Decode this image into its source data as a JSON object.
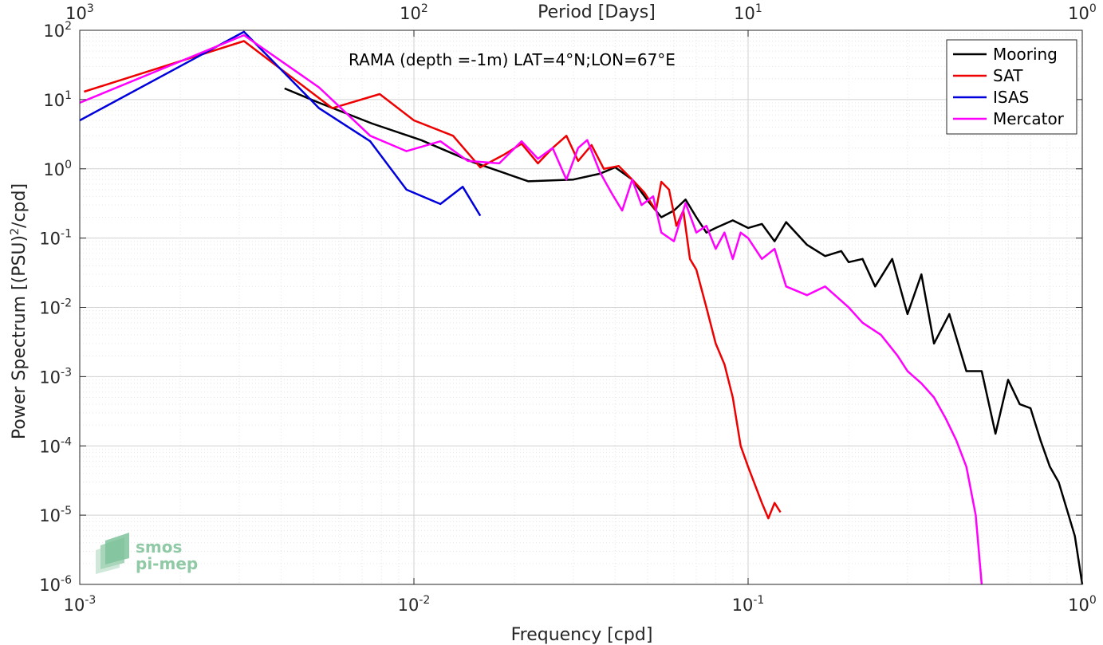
{
  "chart_data": {
    "type": "line",
    "title": "RAMA (depth =-1m) LAT=4°N;LON=67°E",
    "xlabel": "Frequency [cpd]",
    "top_xlabel": "Period [Days]",
    "ylabel_main": "Power Spectrum [(PSU)",
    "ylabel_sup": "2",
    "ylabel_tail": "/cpd]",
    "x_scale": "log",
    "y_scale": "log",
    "xlim": [
      0.001,
      1
    ],
    "ylim": [
      1e-06,
      100
    ],
    "grid": true,
    "legend_position": "top-right",
    "x_ticks": [
      {
        "value": 0.001,
        "base": "10",
        "exp": "-3"
      },
      {
        "value": 0.01,
        "base": "10",
        "exp": "-2"
      },
      {
        "value": 0.1,
        "base": "10",
        "exp": "-1"
      },
      {
        "value": 1,
        "base": "10",
        "exp": "0"
      }
    ],
    "top_ticks": [
      {
        "value": 0.001,
        "base": "10",
        "exp": "3"
      },
      {
        "value": 0.01,
        "base": "10",
        "exp": "2"
      },
      {
        "value": 0.1,
        "base": "10",
        "exp": "1"
      },
      {
        "value": 1,
        "base": "10",
        "exp": "0"
      }
    ],
    "y_ticks": [
      {
        "value": 100,
        "base": "10",
        "exp": "2"
      },
      {
        "value": 10,
        "base": "10",
        "exp": "1"
      },
      {
        "value": 1,
        "base": "10",
        "exp": "0"
      },
      {
        "value": 0.1,
        "base": "10",
        "exp": "-1"
      },
      {
        "value": 0.01,
        "base": "10",
        "exp": "-2"
      },
      {
        "value": 0.001,
        "base": "10",
        "exp": "-3"
      },
      {
        "value": 0.0001,
        "base": "10",
        "exp": "-4"
      },
      {
        "value": 1e-05,
        "base": "10",
        "exp": "-5"
      },
      {
        "value": 1e-06,
        "base": "10",
        "exp": "-6"
      }
    ],
    "series": [
      {
        "name": "Mooring",
        "color": "#000000",
        "points": [
          [
            0.0041,
            14.5
          ],
          [
            0.0052,
            9.0
          ],
          [
            0.0075,
            4.5
          ],
          [
            0.0105,
            2.6
          ],
          [
            0.015,
            1.25
          ],
          [
            0.022,
            0.66
          ],
          [
            0.03,
            0.7
          ],
          [
            0.036,
            0.85
          ],
          [
            0.04,
            1.05
          ],
          [
            0.045,
            0.7
          ],
          [
            0.05,
            0.35
          ],
          [
            0.055,
            0.2
          ],
          [
            0.06,
            0.25
          ],
          [
            0.065,
            0.36
          ],
          [
            0.07,
            0.2
          ],
          [
            0.075,
            0.12
          ],
          [
            0.08,
            0.14
          ],
          [
            0.09,
            0.18
          ],
          [
            0.1,
            0.14
          ],
          [
            0.11,
            0.16
          ],
          [
            0.12,
            0.09
          ],
          [
            0.13,
            0.17
          ],
          [
            0.15,
            0.08
          ],
          [
            0.17,
            0.055
          ],
          [
            0.19,
            0.065
          ],
          [
            0.2,
            0.045
          ],
          [
            0.22,
            0.05
          ],
          [
            0.24,
            0.02
          ],
          [
            0.27,
            0.05
          ],
          [
            0.3,
            0.008
          ],
          [
            0.33,
            0.03
          ],
          [
            0.36,
            0.003
          ],
          [
            0.4,
            0.008
          ],
          [
            0.45,
            0.0012
          ],
          [
            0.5,
            0.0012
          ],
          [
            0.55,
            0.00015
          ],
          [
            0.6,
            0.0009
          ],
          [
            0.65,
            0.0004
          ],
          [
            0.7,
            0.00035
          ],
          [
            0.75,
            0.00012
          ],
          [
            0.8,
            5e-05
          ],
          [
            0.85,
            3e-05
          ],
          [
            0.9,
            1.2e-05
          ],
          [
            0.95,
            5e-06
          ],
          [
            1.0,
            1e-06
          ]
        ]
      },
      {
        "name": "SAT",
        "color": "#ee0000",
        "points": [
          [
            0.00103,
            13.0
          ],
          [
            0.0031,
            70.0
          ],
          [
            0.0057,
            7.5
          ],
          [
            0.0079,
            12.0
          ],
          [
            0.01,
            5.0
          ],
          [
            0.0131,
            3.0
          ],
          [
            0.0158,
            1.05
          ],
          [
            0.0186,
            1.6
          ],
          [
            0.021,
            2.3
          ],
          [
            0.0235,
            1.2
          ],
          [
            0.026,
            2.0
          ],
          [
            0.0286,
            3.0
          ],
          [
            0.031,
            1.3
          ],
          [
            0.034,
            2.2
          ],
          [
            0.037,
            1.0
          ],
          [
            0.041,
            1.1
          ],
          [
            0.045,
            0.7
          ],
          [
            0.049,
            0.45
          ],
          [
            0.053,
            0.25
          ],
          [
            0.055,
            0.65
          ],
          [
            0.058,
            0.5
          ],
          [
            0.061,
            0.15
          ],
          [
            0.064,
            0.25
          ],
          [
            0.067,
            0.05
          ],
          [
            0.07,
            0.035
          ],
          [
            0.075,
            0.01
          ],
          [
            0.08,
            0.003
          ],
          [
            0.085,
            0.0015
          ],
          [
            0.09,
            0.0005
          ],
          [
            0.095,
            0.0001
          ],
          [
            0.1,
            5e-05
          ],
          [
            0.11,
            1.5e-05
          ],
          [
            0.115,
            9e-06
          ],
          [
            0.12,
            1.5e-05
          ],
          [
            0.125,
            1.1e-05
          ]
        ]
      },
      {
        "name": "ISAS",
        "color": "#0000dd",
        "points": [
          [
            0.001,
            5.0
          ],
          [
            0.0031,
            95.0
          ],
          [
            0.0052,
            7.5
          ],
          [
            0.0074,
            2.5
          ],
          [
            0.0095,
            0.5
          ],
          [
            0.012,
            0.31
          ],
          [
            0.014,
            0.55
          ],
          [
            0.0158,
            0.21
          ]
        ]
      },
      {
        "name": "Mercator",
        "color": "#ff00ff",
        "points": [
          [
            0.001,
            9.0
          ],
          [
            0.0031,
            85.0
          ],
          [
            0.0052,
            15.0
          ],
          [
            0.0074,
            3.0
          ],
          [
            0.0095,
            1.8
          ],
          [
            0.012,
            2.5
          ],
          [
            0.0145,
            1.3
          ],
          [
            0.018,
            1.2
          ],
          [
            0.021,
            2.5
          ],
          [
            0.0235,
            1.4
          ],
          [
            0.026,
            2.0
          ],
          [
            0.0286,
            0.7
          ],
          [
            0.031,
            2.0
          ],
          [
            0.033,
            2.6
          ],
          [
            0.036,
            0.9
          ],
          [
            0.039,
            0.45
          ],
          [
            0.042,
            0.25
          ],
          [
            0.045,
            0.7
          ],
          [
            0.048,
            0.3
          ],
          [
            0.052,
            0.4
          ],
          [
            0.055,
            0.12
          ],
          [
            0.06,
            0.09
          ],
          [
            0.065,
            0.32
          ],
          [
            0.07,
            0.12
          ],
          [
            0.075,
            0.15
          ],
          [
            0.08,
            0.07
          ],
          [
            0.085,
            0.12
          ],
          [
            0.09,
            0.05
          ],
          [
            0.095,
            0.12
          ],
          [
            0.1,
            0.1
          ],
          [
            0.11,
            0.05
          ],
          [
            0.12,
            0.07
          ],
          [
            0.13,
            0.02
          ],
          [
            0.15,
            0.015
          ],
          [
            0.17,
            0.02
          ],
          [
            0.2,
            0.01
          ],
          [
            0.22,
            0.006
          ],
          [
            0.25,
            0.004
          ],
          [
            0.28,
            0.002
          ],
          [
            0.3,
            0.0012
          ],
          [
            0.33,
            0.0008
          ],
          [
            0.36,
            0.0005
          ],
          [
            0.39,
            0.00025
          ],
          [
            0.42,
            0.00012
          ],
          [
            0.45,
            5e-05
          ],
          [
            0.48,
            1e-05
          ],
          [
            0.5,
            1e-06
          ]
        ]
      }
    ]
  },
  "logo": {
    "line1": "smos",
    "line2": "pi-mep"
  }
}
